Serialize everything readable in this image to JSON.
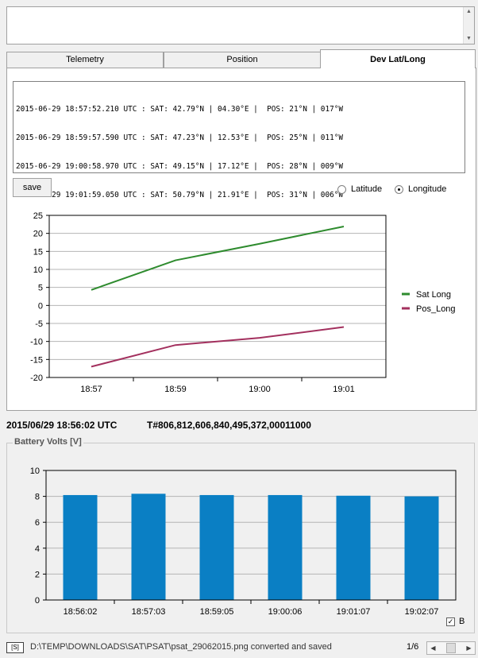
{
  "tabs": [
    {
      "label": "Telemetry"
    },
    {
      "label": "Position"
    },
    {
      "label": "Dev Lat/Long"
    }
  ],
  "log_lines": [
    "2015-06-29 18:57:52.210 UTC : SAT: 42.79°N | 04.30°E |  POS: 21°N | 017°W",
    "2015-06-29 18:59:57.590 UTC : SAT: 47.23°N | 12.53°E |  POS: 25°N | 011°W",
    "2015-06-29 19:00:58.970 UTC : SAT: 49.15°N | 17.12°E |  POS: 28°N | 009°W",
    "2015-06-29 19:01:59.050 UTC : SAT: 50.79°N | 21.91°E |  POS: 31°N | 006°W"
  ],
  "save_label": "save",
  "radio": {
    "latitude": "Latitude",
    "longitude": "Longitude",
    "selected": "longitude"
  },
  "status_time": "2015/06/29 18:56:02 UTC",
  "telemetry": "T#806,812,606,840,495,372,00011000",
  "battery_title": "Battery Volts  [V]",
  "checkbox_label": "B",
  "checkbox_checked": true,
  "statusbar": {
    "icon_label": "[S]",
    "text": "D:\\TEMP\\DOWNLOADS\\SAT\\PSAT\\psat_29062015.png converted and saved",
    "page": "1/6"
  },
  "chart_data": [
    {
      "type": "line",
      "categories": [
        "18:57",
        "18:59",
        "19:00",
        "19:01"
      ],
      "ylim": [
        -20,
        25
      ],
      "yticks": [
        25,
        20,
        15,
        10,
        5,
        0,
        -5,
        -10,
        -15,
        -20
      ],
      "grid": true,
      "legend": "right",
      "series": [
        {
          "name": "Sat Long",
          "color": "#2e8b2e",
          "values": [
            4.3,
            12.53,
            17.12,
            21.91
          ]
        },
        {
          "name": "Pos_Long",
          "color": "#a3305e",
          "values": [
            -17,
            -11,
            -9,
            -6
          ]
        }
      ]
    },
    {
      "type": "bar",
      "categories": [
        "18:56:02",
        "18:57:03",
        "18:59:05",
        "19:00:06",
        "19:01:07",
        "19:02:07"
      ],
      "values": [
        8.1,
        8.2,
        8.1,
        8.1,
        8.05,
        8.0
      ],
      "ylim": [
        0,
        10
      ],
      "yticks": [
        10,
        8,
        6,
        4,
        2,
        0
      ],
      "grid": true,
      "color": "#0a7fc4"
    }
  ]
}
